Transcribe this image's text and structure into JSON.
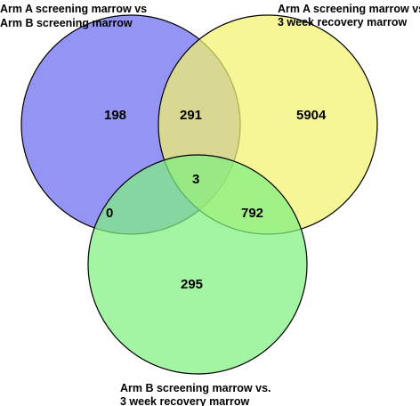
{
  "diagram": {
    "type": "venn-3",
    "sets": [
      {
        "label_lines": [
          "Arm A screening marrow vs",
          "Arm B screening marrow"
        ],
        "color": "#7070f0"
      },
      {
        "label_lines": [
          "Arm A screening marrow vs.",
          "3 week recovery marrow"
        ],
        "color": "#f2f26e"
      },
      {
        "label_lines": [
          "Arm B screening marrow vs.",
          "3 week recovery marrow"
        ],
        "color": "#80f080"
      }
    ],
    "regions": {
      "only_a": "198",
      "a_and_b": "291",
      "only_b": "5904",
      "a_b_c": "3",
      "a_and_c": "0",
      "b_and_c": "792",
      "only_c": "295"
    }
  }
}
